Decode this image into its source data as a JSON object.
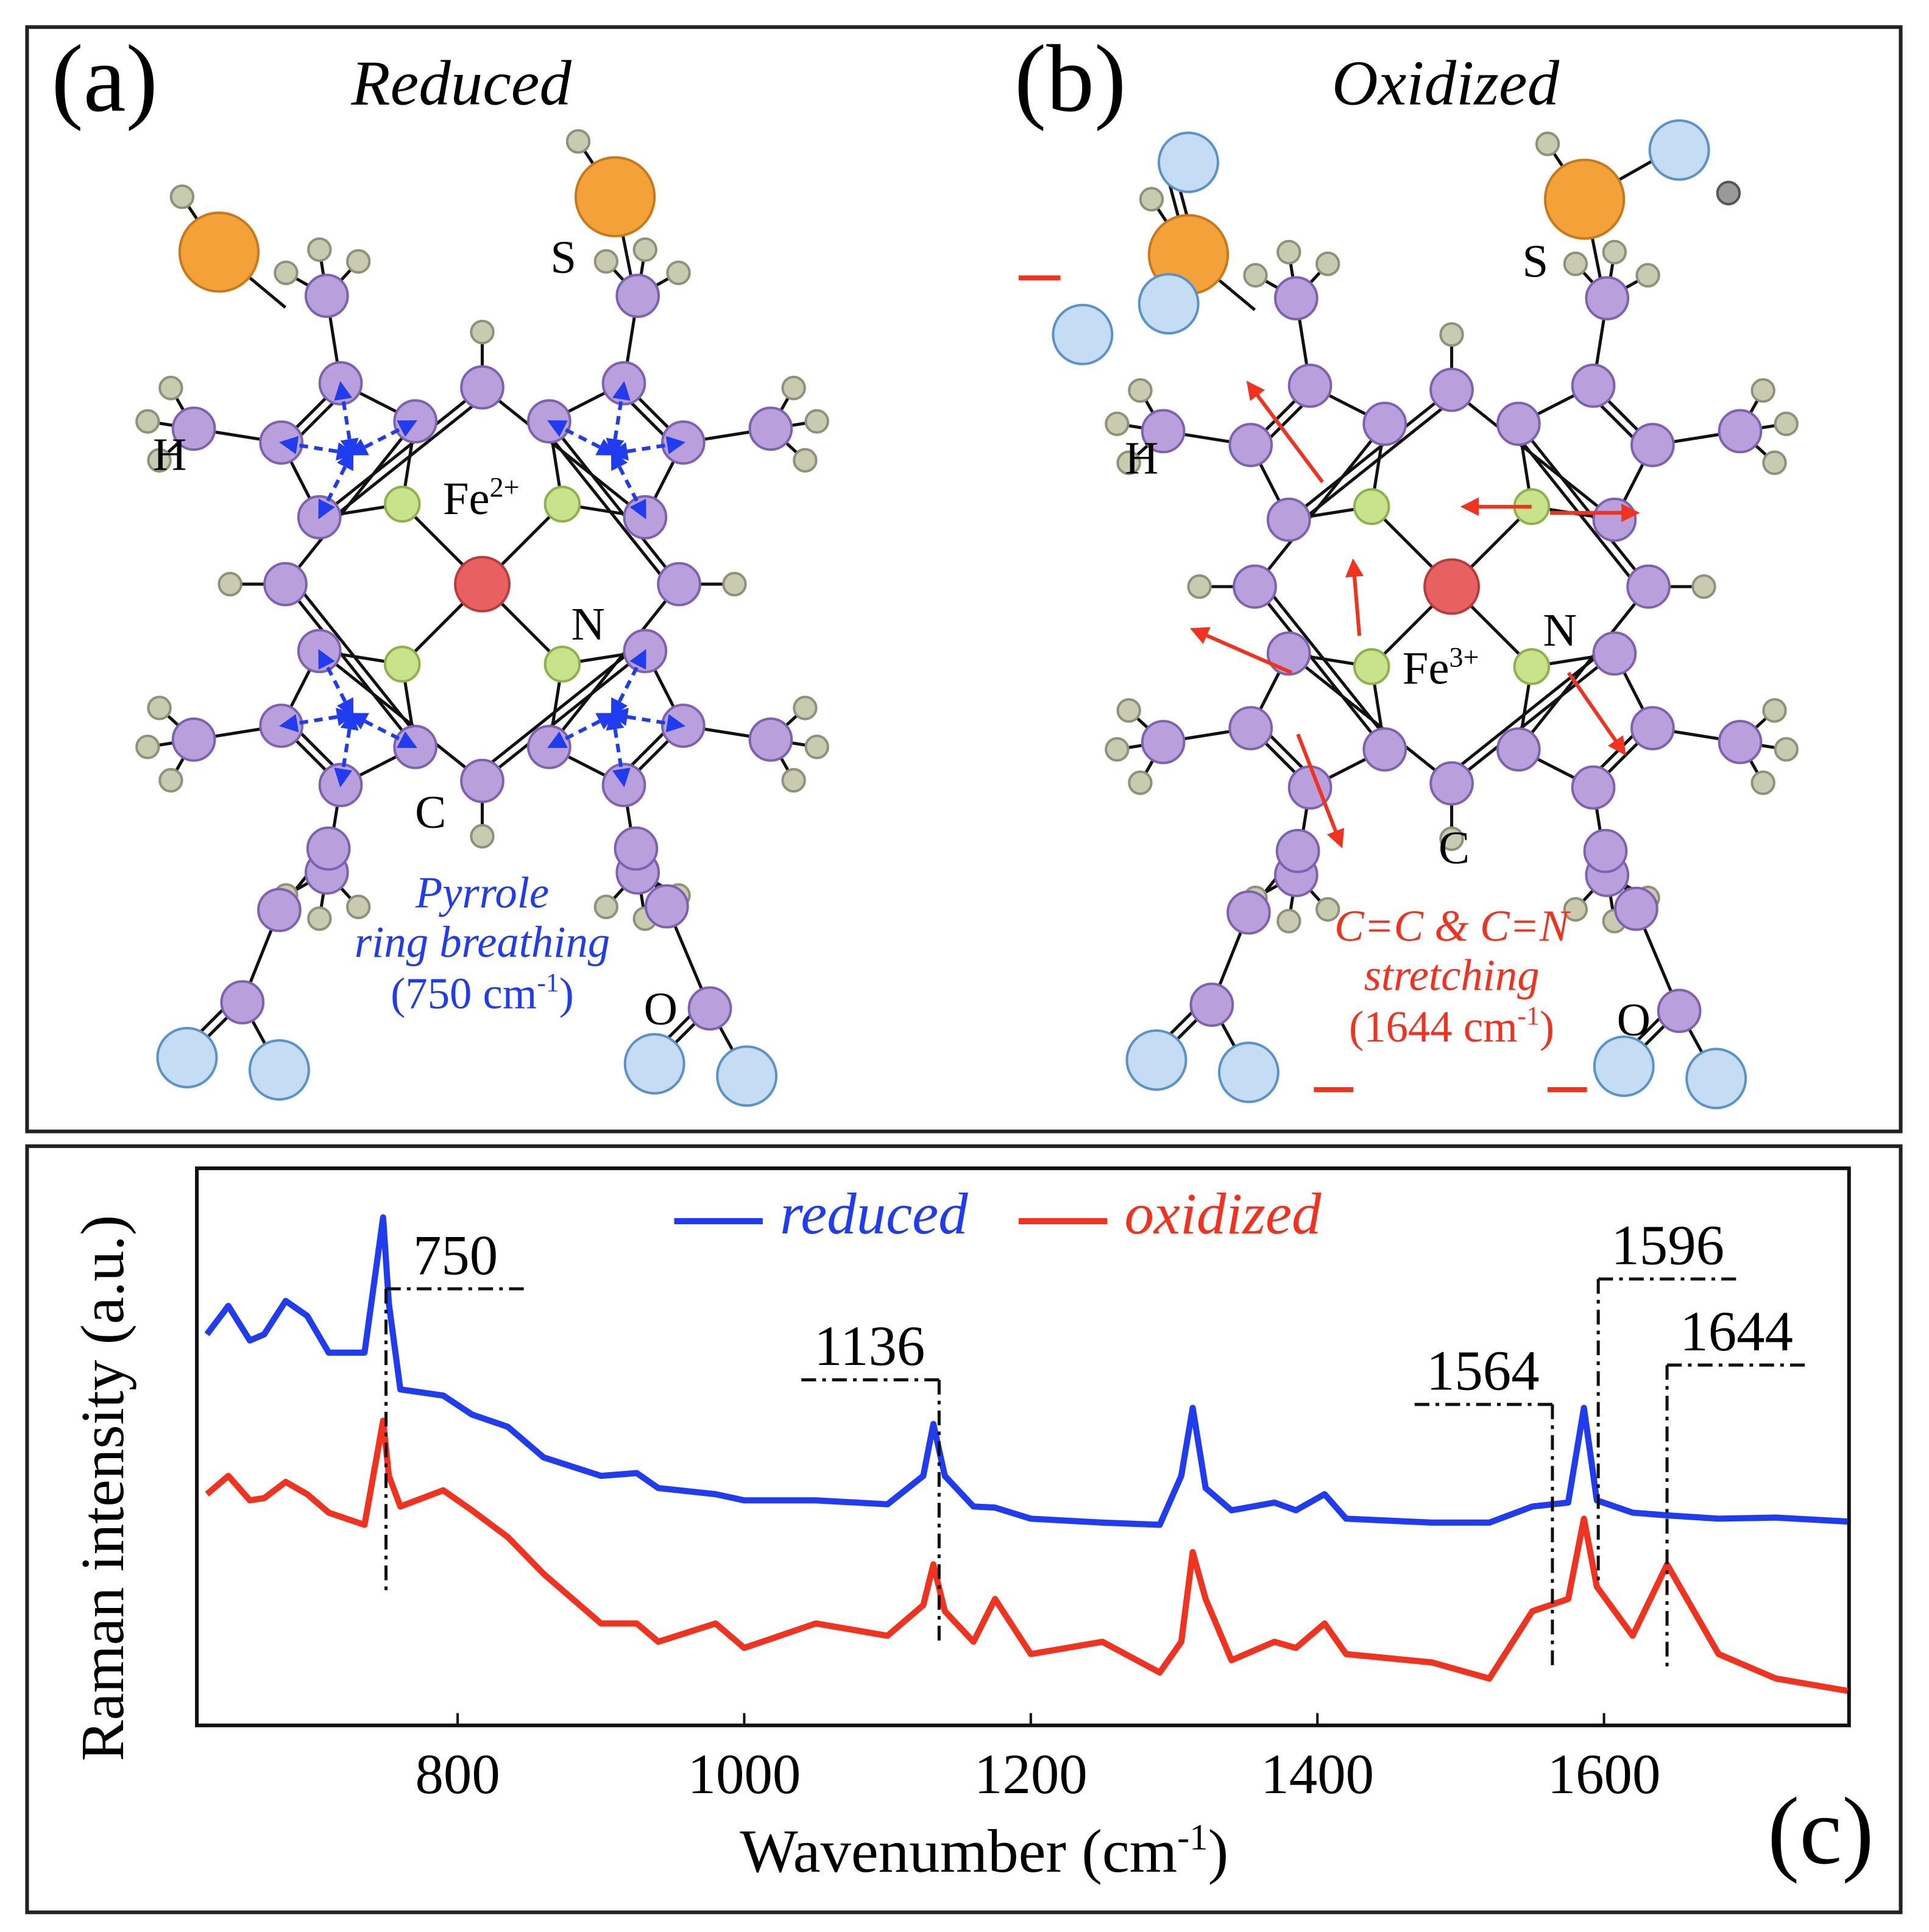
{
  "panel_a": {
    "label": "(a)",
    "title": "Reduced",
    "atoms": {
      "S": "S",
      "H": "H",
      "Fe": "Fe",
      "Fe_charge": "2+",
      "N": "N",
      "C": "C",
      "O": "O"
    },
    "mode": {
      "line1": "Pyrrole",
      "line2": "ring breathing",
      "line3_start": "(750 cm",
      "line3_sup": "-1",
      "line3_end": ")"
    }
  },
  "panel_b": {
    "label": "(b)",
    "title": "Oxidized",
    "atoms": {
      "S": "S",
      "H": "H",
      "Fe": "Fe",
      "Fe_charge": "3+",
      "N": "N",
      "C": "C",
      "O": "O"
    },
    "mode": {
      "line1": "C=C & C=N",
      "line2": "stretching",
      "line3_start": "(1644 cm",
      "line3_sup": "-1",
      "line3_end": ")"
    }
  },
  "chart_data": {
    "type": "line",
    "panel_label": "(c)",
    "xlabel": {
      "start": "Wavenumber (cm",
      "sup": "-1",
      "end": ")"
    },
    "ylabel": "Raman intensity (a.u.)",
    "xlim": [
      618,
      1771
    ],
    "ylim": [
      0,
      100
    ],
    "xticks": [
      800,
      1000,
      1200,
      1400,
      1600
    ],
    "legend": "top",
    "x": [
      625,
      640,
      655,
      665,
      680,
      695,
      710,
      735,
      748,
      752,
      760,
      790,
      810,
      835,
      860,
      900,
      925,
      940,
      980,
      1000,
      1050,
      1100,
      1125,
      1132,
      1140,
      1160,
      1175,
      1200,
      1250,
      1290,
      1305,
      1313,
      1322,
      1340,
      1370,
      1385,
      1405,
      1420,
      1480,
      1520,
      1550,
      1575,
      1586,
      1595,
      1620,
      1644,
      1680,
      1720,
      1770
    ],
    "series": [
      {
        "name": "reduced",
        "color": "#1f3cf0",
        "values": [
          70.2,
          75.3,
          69.1,
          70.2,
          76.2,
          73.5,
          66.9,
          66.9,
          91.2,
          75.7,
          60.3,
          59.2,
          55.8,
          53.6,
          48.1,
          44.8,
          45.3,
          42.6,
          41.5,
          40.4,
          40.4,
          39.7,
          44.8,
          54.1,
          44.8,
          39.3,
          39.1,
          37.1,
          36.4,
          36.0,
          44.8,
          57.0,
          42.6,
          38.6,
          40.0,
          38.6,
          41.5,
          37.1,
          36.4,
          36.4,
          39.3,
          40.0,
          57.0,
          40.4,
          38.2,
          37.7,
          37.1,
          37.3,
          36.6
        ]
      },
      {
        "name": "oxidized",
        "color": "#f0321e",
        "values": [
          41.5,
          44.8,
          40.4,
          40.8,
          43.7,
          41.5,
          38.2,
          36.0,
          54.7,
          44.8,
          39.3,
          42.2,
          38.6,
          33.8,
          27.2,
          18.3,
          18.3,
          15.0,
          18.3,
          13.9,
          18.3,
          16.1,
          21.6,
          28.9,
          20.5,
          15.0,
          22.7,
          12.8,
          15.0,
          9.5,
          15.0,
          31.1,
          22.7,
          11.7,
          15.0,
          13.9,
          18.3,
          12.8,
          11.3,
          8.4,
          20.5,
          22.7,
          37.1,
          24.9,
          16.1,
          28.9,
          12.8,
          8.4,
          6.2
        ]
      }
    ],
    "peak_labels": [
      750,
      1136,
      1564,
      1596,
      1644
    ]
  }
}
